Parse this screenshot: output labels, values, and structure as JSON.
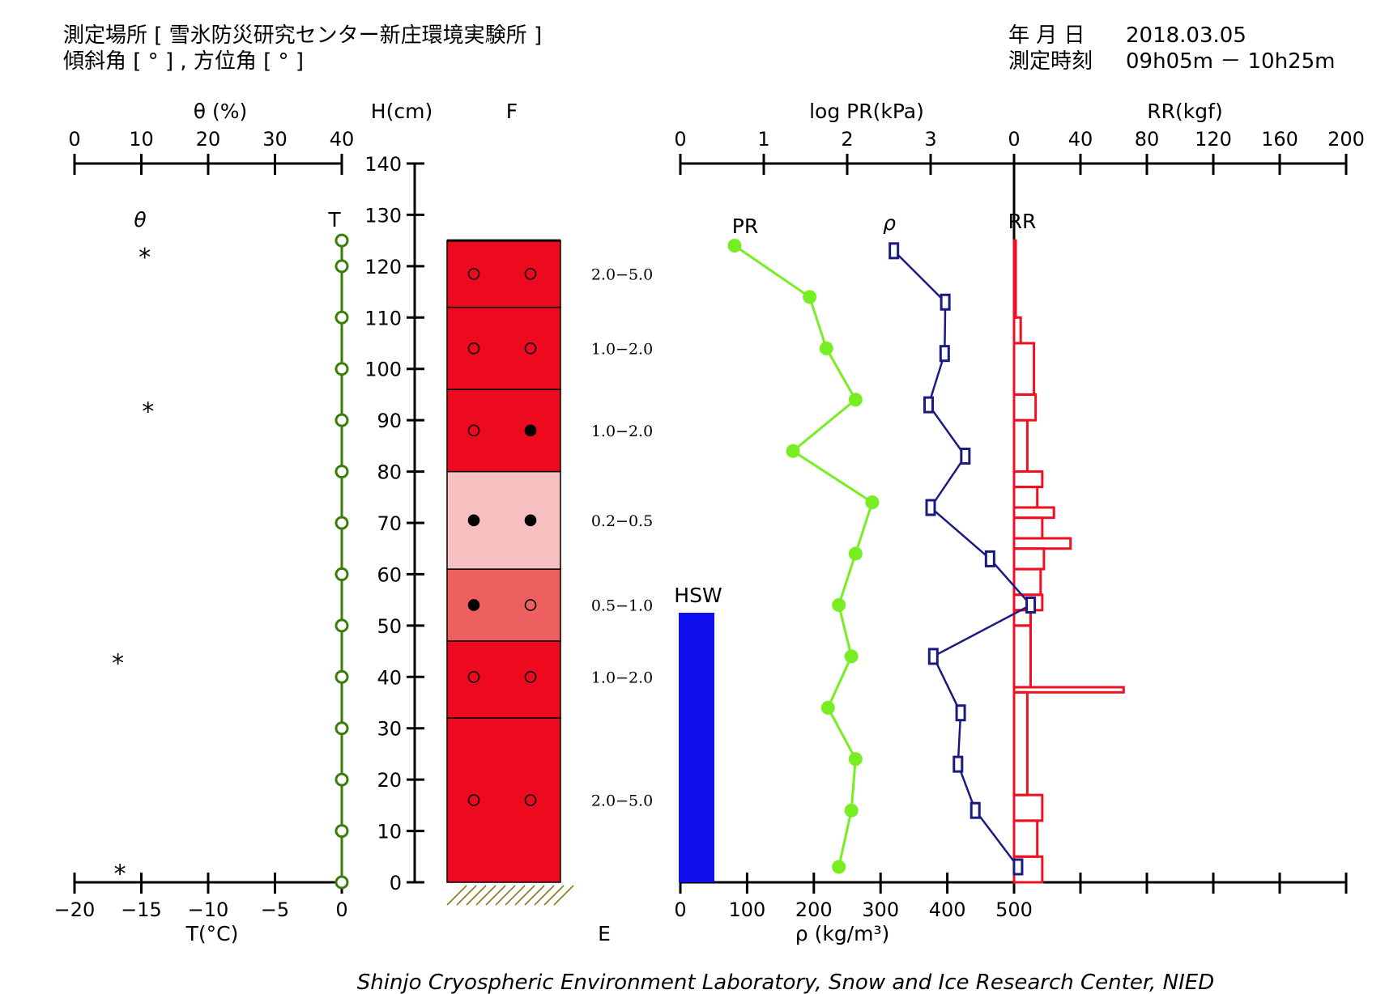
{
  "header": {
    "location_label": "測定場所 [ 雪氷防災研究センター新庄環境実験所 ]",
    "angle_label": "傾斜角 [ ° ] , 方位角 [ ° ]",
    "date_label": "年 月 日",
    "date_value": "2018.03.05",
    "time_label": "測定時刻",
    "time_value": "09h05m － 10h25m"
  },
  "footer": {
    "credit": "Shinjo Cryospheric Environment Laboratory, Snow and Ice Research Center, NIED"
  },
  "colors": {
    "temperature": "#3a7d0a",
    "pr": "#77ee22",
    "density": "#1a1a80",
    "rr": "#ee1122",
    "hsw": "#1010ee",
    "layer_dark": "#ee0a1e",
    "layer_mid": "#ee6060",
    "layer_light": "#f6c0c0"
  },
  "chart_data": [
    {
      "id": "moisture_temperature",
      "type": "scatter",
      "x_top_label": "θ (%)",
      "x_top_ticks": [
        "0",
        "10",
        "20",
        "30",
        "40"
      ],
      "x_top_range": [
        0,
        40
      ],
      "x_bottom_label": "T(°C)",
      "x_bottom_ticks": [
        "−20",
        "−15",
        "−10",
        "−5",
        "0"
      ],
      "x_bottom_range": [
        -20,
        0
      ],
      "series": [
        {
          "name": "θ",
          "marker": "*",
          "points": [
            [
              10.5,
              122
            ],
            [
              11,
              92
            ],
            [
              6.5,
              43
            ],
            [
              6.8,
              2
            ]
          ]
        },
        {
          "name": "T",
          "marker": "o",
          "points": [
            [
              0,
              125
            ],
            [
              0,
              120
            ],
            [
              0,
              110
            ],
            [
              0,
              100
            ],
            [
              0,
              90
            ],
            [
              0,
              80
            ],
            [
              0,
              70
            ],
            [
              0,
              60
            ],
            [
              0,
              50
            ],
            [
              0,
              40
            ],
            [
              0,
              30
            ],
            [
              0,
              20
            ],
            [
              0,
              10
            ],
            [
              0,
              0
            ]
          ]
        }
      ]
    },
    {
      "id": "stratigraphy",
      "type": "table",
      "h_label": "H(cm)",
      "h_ticks": [
        "0",
        "10",
        "20",
        "30",
        "40",
        "50",
        "60",
        "70",
        "80",
        "90",
        "100",
        "110",
        "120",
        "130",
        "140"
      ],
      "h_range": [
        0,
        140
      ],
      "f_label": "F",
      "e_label": "E",
      "layers": [
        {
          "bottom": 0,
          "top": 32,
          "shade": "dark",
          "marks": [
            "open",
            "open"
          ],
          "grain_size": "2.0−5.0",
          "mark_h": 16
        },
        {
          "bottom": 32,
          "top": 47,
          "shade": "dark",
          "marks": [
            "open",
            "open"
          ],
          "grain_size": "1.0−2.0",
          "mark_h": 40
        },
        {
          "bottom": 47,
          "top": 61,
          "shade": "mid",
          "marks": [
            "filled",
            "open"
          ],
          "grain_size": "0.5−1.0",
          "mark_h": 54
        },
        {
          "bottom": 61,
          "top": 80,
          "shade": "light",
          "marks": [
            "filled",
            "filled"
          ],
          "grain_size": "0.2−0.5",
          "mark_h": 70.5
        },
        {
          "bottom": 80,
          "top": 96,
          "shade": "dark",
          "marks": [
            "open",
            "filled"
          ],
          "grain_size": "1.0−2.0",
          "mark_h": 88
        },
        {
          "bottom": 96,
          "top": 112,
          "shade": "dark",
          "marks": [
            "open",
            "open"
          ],
          "grain_size": "1.0−2.0",
          "mark_h": 104
        },
        {
          "bottom": 112,
          "top": 125,
          "shade": "dark",
          "marks": [
            "open",
            "open"
          ],
          "grain_size": "2.0−5.0",
          "mark_h": 118.5
        }
      ]
    },
    {
      "id": "hardness_density",
      "type": "line",
      "pr_axis_label": "log PR(kPa)",
      "pr_ticks": [
        "0",
        "1",
        "2",
        "3"
      ],
      "pr_range": [
        0,
        4
      ],
      "rr_axis_label": "RR(kgf)",
      "rr_ticks": [
        "0",
        "40",
        "80",
        "120",
        "160",
        "200"
      ],
      "rr_range": [
        0,
        200
      ],
      "density_axis_label": "ρ (kg/m³)",
      "density_ticks": [
        "0",
        "100",
        "200",
        "300",
        "400",
        "500"
      ],
      "density_range": [
        0,
        500
      ],
      "hsw_label": "HSW",
      "hsw_value_cm": 52.5,
      "series": [
        {
          "name": "PR",
          "points": [
            [
              0.65,
              124
            ],
            [
              1.55,
              114
            ],
            [
              1.75,
              104
            ],
            [
              2.1,
              94
            ],
            [
              1.35,
              84
            ],
            [
              2.3,
              74
            ],
            [
              2.1,
              64
            ],
            [
              1.9,
              54
            ],
            [
              2.05,
              44
            ],
            [
              1.77,
              34
            ],
            [
              2.1,
              24
            ],
            [
              2.05,
              14
            ],
            [
              1.9,
              3
            ]
          ]
        },
        {
          "name": "ρ",
          "points": [
            [
              320,
              123
            ],
            [
              397,
              113
            ],
            [
              396,
              103
            ],
            [
              372,
              93
            ],
            [
              427,
              83
            ],
            [
              375,
              73
            ],
            [
              464,
              63
            ],
            [
              525,
              54
            ],
            [
              379,
              44
            ],
            [
              420,
              33
            ],
            [
              416,
              23
            ],
            [
              442,
              14
            ],
            [
              506,
              3
            ]
          ]
        },
        {
          "name": "RR",
          "segments": [
            [
              125,
              110,
              1
            ],
            [
              110,
              105,
              4
            ],
            [
              105,
              95,
              12
            ],
            [
              95,
              90,
              13
            ],
            [
              90,
              80,
              8
            ],
            [
              80,
              77,
              17
            ],
            [
              77,
              73,
              14
            ],
            [
              73,
              71,
              24
            ],
            [
              71,
              67,
              17
            ],
            [
              67,
              65,
              34
            ],
            [
              65,
              61,
              18
            ],
            [
              61,
              56,
              16
            ],
            [
              56,
              53,
              17
            ],
            [
              53,
              50,
              10
            ],
            [
              50,
              38,
              10
            ],
            [
              38,
              37,
              66
            ],
            [
              37,
              17,
              8
            ],
            [
              17,
              12,
              17
            ],
            [
              12,
              5,
              14
            ],
            [
              5,
              0,
              17
            ]
          ]
        }
      ]
    }
  ]
}
